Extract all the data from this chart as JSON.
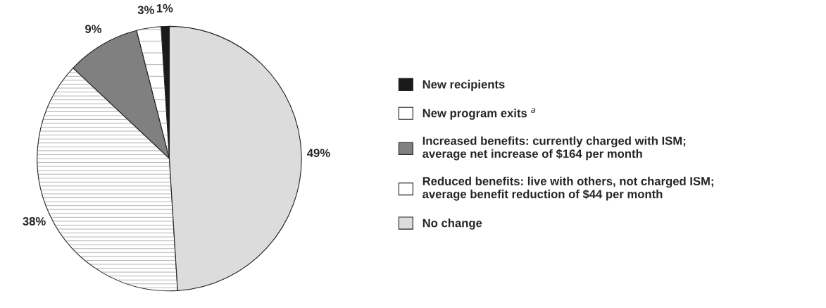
{
  "chart_data": {
    "type": "pie",
    "categories": [
      "New recipients",
      "New program exits $^{a}$",
      "Increased benefits: currently charged with ISM;\naverage net increase of $164 per month",
      "Reduced benefits: live with others, not charged ISM;\naverage benefit reduction of $44 per month",
      "No change"
    ],
    "values": [
      1,
      3,
      9,
      38,
      49
    ],
    "colors": [
      "#1a1a1a",
      "#ffffff",
      "#808080",
      "#ffffff",
      "#dcdcdc"
    ],
    "value_labels": [
      "1%",
      "3%",
      "9%",
      "38%",
      "49%"
    ],
    "legend": "right"
  }
}
